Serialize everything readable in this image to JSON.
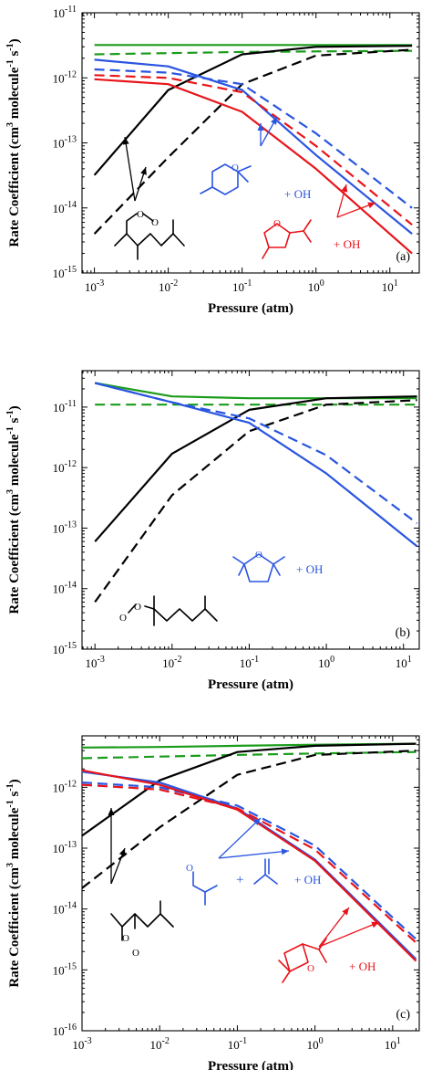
{
  "figure": {
    "ylabel_html_parts": [
      "Rate Coefficient (cm",
      "3",
      " molecule",
      "-1",
      " s",
      "-1",
      ")"
    ],
    "xlabel": "Pressure (atm)"
  },
  "colors": {
    "black": "#000000",
    "green": "#1c9c1c",
    "blue": "#2a55e0",
    "red": "#e8141a"
  },
  "chart_data": [
    {
      "type": "line",
      "panel_label": "(a)",
      "xlabel": "Pressure (atm)",
      "ylabel": "Rate Coefficient (cm3 molecule-1 s-1)",
      "xscale": "log",
      "yscale": "log",
      "xlim": [
        0.00068,
        25
      ],
      "ylim": [
        1e-15,
        1e-11
      ],
      "x_ticks": [
        -3,
        -2,
        -1,
        0,
        1
      ],
      "y_ticks": [
        -15,
        -14,
        -13,
        -12,
        -11
      ],
      "series": [
        {
          "color": "green",
          "style": "solid",
          "x": [
            0.001,
            0.01,
            0.1,
            1,
            20
          ],
          "y": [
            3.2e-12,
            3.2e-12,
            3.2e-12,
            3.2e-12,
            3.2e-12
          ]
        },
        {
          "color": "green",
          "style": "dashed",
          "x": [
            0.001,
            0.01,
            0.1,
            1,
            20
          ],
          "y": [
            2.3e-12,
            2.4e-12,
            2.5e-12,
            2.55e-12,
            2.6e-12
          ]
        },
        {
          "color": "black",
          "style": "solid",
          "x": [
            0.001,
            0.01,
            0.1,
            1,
            20
          ],
          "y": [
            3.2e-14,
            6.5e-13,
            2.3e-12,
            3e-12,
            3.1e-12
          ]
        },
        {
          "color": "black",
          "style": "dashed",
          "x": [
            0.001,
            0.01,
            0.1,
            1,
            20
          ],
          "y": [
            4e-15,
            6e-14,
            8e-13,
            2.2e-12,
            2.7e-12
          ]
        },
        {
          "color": "blue",
          "style": "solid",
          "x": [
            0.001,
            0.01,
            0.1,
            1,
            20
          ],
          "y": [
            1.9e-12,
            1.5e-12,
            6.5e-13,
            6.5e-14,
            4e-15
          ]
        },
        {
          "color": "blue",
          "style": "dashed",
          "x": [
            0.001,
            0.01,
            0.1,
            1,
            20
          ],
          "y": [
            1.35e-12,
            1.2e-12,
            8e-13,
            1.4e-13,
            1e-14
          ]
        },
        {
          "color": "red",
          "style": "solid",
          "x": [
            0.001,
            0.01,
            0.1,
            1,
            20
          ],
          "y": [
            9.5e-13,
            8e-13,
            3e-13,
            4e-14,
            2e-15
          ]
        },
        {
          "color": "red",
          "style": "dashed",
          "x": [
            0.001,
            0.01,
            0.1,
            1,
            20
          ],
          "y": [
            1.1e-12,
            1e-12,
            6e-13,
            9e-14,
            5.5e-15
          ]
        }
      ],
      "annotations": [
        "+ OH",
        "+ OH"
      ]
    },
    {
      "type": "line",
      "panel_label": "(b)",
      "xlabel": "Pressure (atm)",
      "ylabel": "Rate Coefficient (cm3 molecule-1 s-1)",
      "xscale": "log",
      "yscale": "log",
      "xlim": [
        0.00068,
        16
      ],
      "ylim": [
        1e-15,
        4e-11
      ],
      "x_ticks": [
        -3,
        -2,
        -1,
        0,
        1
      ],
      "y_ticks": [
        -15,
        -14,
        -13,
        -12,
        -11
      ],
      "series": [
        {
          "color": "green",
          "style": "solid",
          "x": [
            0.001,
            0.01,
            0.1,
            1,
            15
          ],
          "y": [
            2.5e-11,
            1.5e-11,
            1.4e-11,
            1.4e-11,
            1.4e-11
          ]
        },
        {
          "color": "green",
          "style": "dashed",
          "x": [
            0.001,
            0.01,
            0.1,
            1,
            15
          ],
          "y": [
            1.1e-11,
            1.1e-11,
            1.1e-11,
            1.1e-11,
            1.1e-11
          ]
        },
        {
          "color": "black",
          "style": "solid",
          "x": [
            0.001,
            0.01,
            0.1,
            1,
            15
          ],
          "y": [
            6e-14,
            1.7e-12,
            9e-12,
            1.4e-11,
            1.5e-11
          ]
        },
        {
          "color": "black",
          "style": "dashed",
          "x": [
            0.001,
            0.01,
            0.1,
            1,
            15
          ],
          "y": [
            6e-15,
            3.5e-13,
            4e-12,
            1.1e-11,
            1.3e-11
          ]
        },
        {
          "color": "blue",
          "style": "solid",
          "x": [
            0.001,
            0.01,
            0.1,
            1,
            15
          ],
          "y": [
            2.5e-11,
            1.2e-11,
            5.5e-12,
            8e-13,
            5e-14
          ]
        },
        {
          "color": "blue",
          "style": "dashed",
          "x": [
            0.001,
            0.01,
            0.1,
            1,
            15
          ],
          "y": [
            2.5e-11,
            1.2e-11,
            6.5e-12,
            1.6e-12,
            1.2e-13
          ]
        }
      ],
      "annotations": [
        "+ OH"
      ]
    },
    {
      "type": "line",
      "panel_label": "(c)",
      "xlabel": "Pressure (atm)",
      "ylabel": "Rate Coefficient (cm3 molecule-1 s-1)",
      "xscale": "log",
      "yscale": "log",
      "xlim": [
        0.001,
        22
      ],
      "ylim": [
        1e-16,
        7e-12
      ],
      "x_ticks": [
        -3,
        -2,
        -1,
        0,
        1
      ],
      "y_ticks": [
        -16,
        -15,
        -14,
        -13,
        -12
      ],
      "series": [
        {
          "color": "green",
          "style": "solid",
          "x": [
            0.001,
            0.01,
            0.1,
            1,
            20
          ],
          "y": [
            4.5e-12,
            4.6e-12,
            4.8e-12,
            5e-12,
            5.2e-12
          ]
        },
        {
          "color": "green",
          "style": "dashed",
          "x": [
            0.001,
            0.01,
            0.1,
            1,
            20
          ],
          "y": [
            3e-12,
            3.2e-12,
            3.4e-12,
            3.6e-12,
            3.8e-12
          ]
        },
        {
          "color": "black",
          "style": "solid",
          "x": [
            0.001,
            0.01,
            0.1,
            1,
            20
          ],
          "y": [
            1.6e-13,
            1.3e-12,
            3.8e-12,
            4.8e-12,
            5.2e-12
          ]
        },
        {
          "color": "black",
          "style": "dashed",
          "x": [
            0.001,
            0.01,
            0.1,
            1,
            20
          ],
          "y": [
            2.2e-14,
            2.2e-13,
            1.6e-12,
            3.4e-12,
            4e-12
          ]
        },
        {
          "color": "blue",
          "style": "solid",
          "x": [
            0.001,
            0.01,
            0.1,
            1,
            20
          ],
          "y": [
            1.8e-12,
            1.2e-12,
            4.5e-13,
            6.5e-14,
            1.5e-15
          ]
        },
        {
          "color": "blue",
          "style": "dashed",
          "x": [
            0.001,
            0.01,
            0.1,
            1,
            20
          ],
          "y": [
            1.2e-12,
            1e-12,
            5e-13,
            1.1e-13,
            3.2e-15
          ]
        },
        {
          "color": "red",
          "style": "solid",
          "x": [
            0.001,
            0.01,
            0.1,
            1,
            20
          ],
          "y": [
            1.9e-12,
            1.1e-12,
            4.3e-13,
            6.2e-14,
            1.4e-15
          ]
        },
        {
          "color": "red",
          "style": "dashed",
          "x": [
            0.001,
            0.01,
            0.1,
            1,
            20
          ],
          "y": [
            1.1e-12,
            9.2e-13,
            4.5e-13,
            9.5e-14,
            2.8e-15
          ]
        }
      ],
      "annotations": [
        "+ OH",
        "+",
        "+ OH"
      ]
    }
  ]
}
